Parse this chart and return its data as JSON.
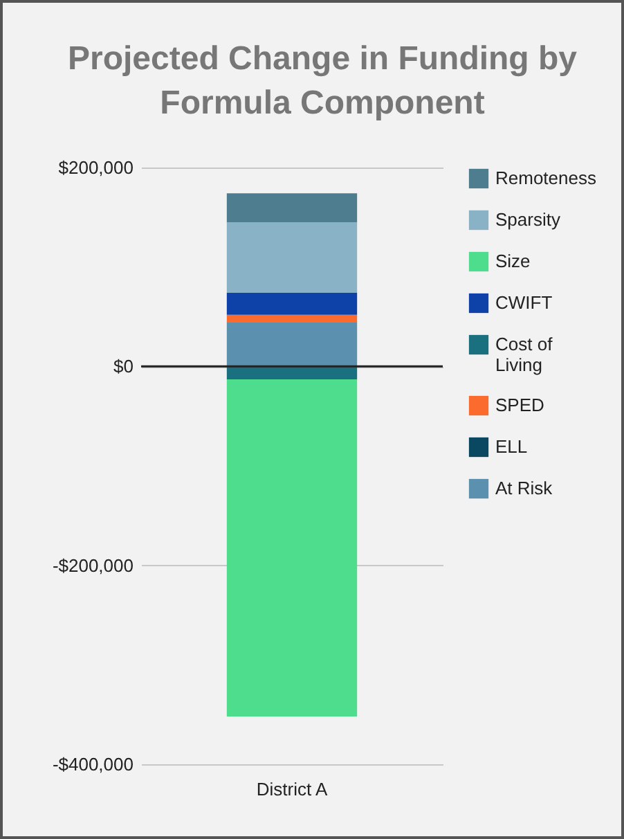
{
  "chart_data": {
    "type": "bar",
    "title": "Projected Change in Funding by Formula Component",
    "categories": [
      "District A"
    ],
    "stacked": true,
    "series": [
      {
        "name": "At Risk",
        "color": "#5b90ae",
        "values": [
          44000
        ]
      },
      {
        "name": "ELL",
        "color": "#0a4760",
        "values": [
          0
        ]
      },
      {
        "name": "SPED",
        "color": "#fb6b2d",
        "values": [
          8000
        ]
      },
      {
        "name": "Cost of Living",
        "color": "#1b7080",
        "values": [
          -13000
        ]
      },
      {
        "name": "CWIFT",
        "color": "#0f42a8",
        "values": [
          22000
        ]
      },
      {
        "name": "Size",
        "color": "#4ddd8c",
        "values": [
          -339000
        ]
      },
      {
        "name": "Sparsity",
        "color": "#8ab2c6",
        "values": [
          71000
        ]
      },
      {
        "name": "Remoteness",
        "color": "#4e7d8f",
        "values": [
          29000
        ]
      }
    ],
    "ylim": [
      -400000,
      200000
    ],
    "yticks": [
      {
        "value": -400000,
        "label": "-$400,000"
      },
      {
        "value": -200000,
        "label": "-$200,000"
      },
      {
        "value": 0,
        "label": "$0"
      },
      {
        "value": 200000,
        "label": "$200,000"
      }
    ],
    "grid": "y",
    "legend": "right",
    "ref_lines": [
      {
        "axis": "y",
        "value": 0,
        "color": "#222222"
      }
    ]
  }
}
